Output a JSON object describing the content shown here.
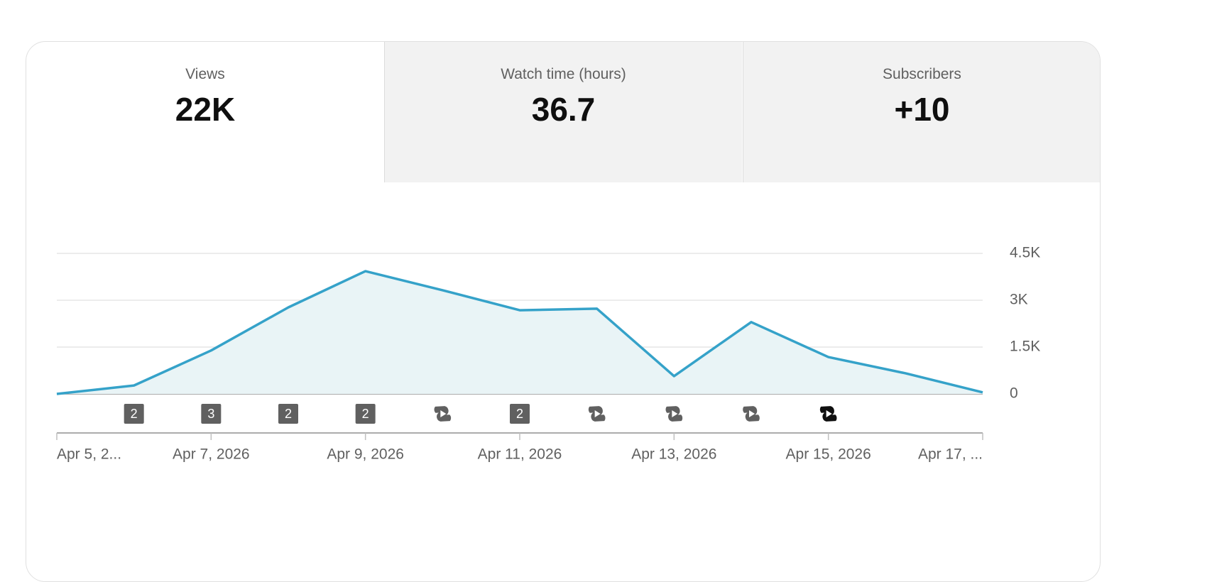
{
  "tabs": [
    {
      "label": "Views",
      "value": "22K"
    },
    {
      "label": "Watch time (hours)",
      "value": "36.7"
    },
    {
      "label": "Subscribers",
      "value": "+10"
    }
  ],
  "chart_data": {
    "type": "line",
    "color": "#35a2c9",
    "area_color": "#e9f4f6",
    "grid": true,
    "x": [
      "Apr 5, 2026",
      "Apr 6, 2026",
      "Apr 7, 2026",
      "Apr 8, 2026",
      "Apr 9, 2026",
      "Apr 10, 2026",
      "Apr 11, 2026",
      "Apr 12, 2026",
      "Apr 13, 2026",
      "Apr 14, 2026",
      "Apr 15, 2026",
      "Apr 16, 2026",
      "Apr 17, 2026"
    ],
    "values": [
      0,
      270,
      1390,
      2770,
      3930,
      3320,
      2680,
      2730,
      570,
      2300,
      1180,
      660,
      50
    ],
    "markers": [
      null,
      2,
      3,
      2,
      2,
      true,
      2,
      true,
      true,
      true,
      true,
      null,
      null
    ],
    "ylim": [
      0,
      4500
    ],
    "yticks": [
      0,
      {
        "value": 1500,
        "label": "1.5K"
      },
      {
        "value": 3000,
        "label": "3K"
      },
      {
        "value": 4500,
        "label": "4.5K"
      }
    ],
    "xticks": [
      {
        "value": "Apr 5, 2026",
        "label": "Apr 5, 2..."
      },
      {
        "value": "Apr 7, 2026",
        "label": "Apr 7, 2026"
      },
      {
        "value": "Apr 9, 2026",
        "label": "Apr 9, 2026"
      },
      {
        "value": "Apr 11, 2026",
        "label": "Apr 11, 2026"
      },
      {
        "value": "Apr 13, 2026",
        "label": "Apr 13, 2026"
      },
      {
        "value": "Apr 15, 2026",
        "label": "Apr 15, 2026"
      },
      {
        "value": "Apr 17, 2026",
        "label": "Apr 17, ..."
      }
    ]
  }
}
